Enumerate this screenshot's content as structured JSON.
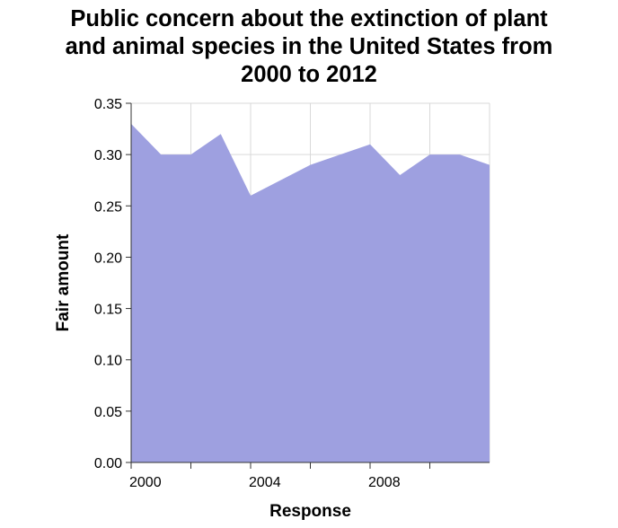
{
  "title_lines": [
    "Public concern about the extinction of plant",
    "and animal species in the United States from",
    "2000 to 2012"
  ],
  "colors": {
    "area_fill": "#9ea0e0",
    "grid": "#d9d9d9",
    "axis": "#333333",
    "background": "#ffffff"
  },
  "chart_data": {
    "type": "area",
    "title": "Public concern about the extinction of plant and animal species in the United States from 2000 to 2012",
    "xlabel": "Response",
    "ylabel": "Fair amount",
    "x": [
      2000,
      2001,
      2002,
      2003,
      2004,
      2005,
      2006,
      2007,
      2008,
      2009,
      2010,
      2011,
      2012
    ],
    "values": [
      0.33,
      0.3,
      0.3,
      0.32,
      0.26,
      0.275,
      0.29,
      0.3,
      0.31,
      0.28,
      0.3,
      0.3,
      0.29
    ],
    "xlim": [
      2000,
      2012
    ],
    "ylim": [
      0,
      0.35
    ],
    "x_ticks": [
      2000,
      2002,
      2004,
      2006,
      2008,
      2010
    ],
    "x_tick_labels": [
      "2000",
      "",
      "2004",
      "",
      "2008",
      ""
    ],
    "y_ticks": [
      0.0,
      0.05,
      0.1,
      0.15,
      0.2,
      0.25,
      0.3,
      0.35
    ],
    "y_tick_labels": [
      "0.00",
      "0.05",
      "0.10",
      "0.15",
      "0.20",
      "0.25",
      "0.30",
      "0.35"
    ],
    "grid": true,
    "legend": "none"
  }
}
